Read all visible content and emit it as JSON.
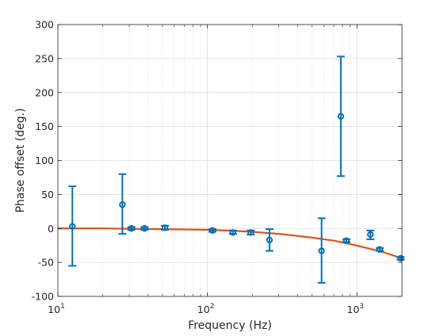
{
  "chart_data": {
    "type": "scatter",
    "xlabel": "Frequency (Hz)",
    "ylabel": "Phase offset (deg.)",
    "xscale": "log",
    "xlim": [
      10,
      2000
    ],
    "ylim": [
      -100,
      300
    ],
    "grid": true,
    "x_ticks": [
      {
        "value": 10,
        "base": "10",
        "exp": "1"
      },
      {
        "value": 100,
        "base": "10",
        "exp": "2"
      },
      {
        "value": 1000,
        "base": "10",
        "exp": "3"
      }
    ],
    "y_ticks": [
      -100,
      -50,
      0,
      50,
      100,
      150,
      200,
      250,
      300
    ],
    "y_tick_labels": [
      "-100",
      "-50",
      "0",
      "50",
      "100",
      "150",
      "200",
      "250",
      "300"
    ],
    "series": [
      {
        "type": "errorbar",
        "color": "#0072BD",
        "marker": "circle",
        "points": [
          {
            "x": 12.5,
            "y": 3,
            "lo": -55,
            "hi": 62
          },
          {
            "x": 27,
            "y": 35,
            "lo": -8,
            "hi": 80
          },
          {
            "x": 31,
            "y": 0,
            "lo": -2,
            "hi": 2
          },
          {
            "x": 38,
            "y": 0,
            "lo": -2,
            "hi": 2
          },
          {
            "x": 52,
            "y": 1,
            "lo": -2,
            "hi": 4
          },
          {
            "x": 108,
            "y": -3,
            "lo": -5,
            "hi": -1
          },
          {
            "x": 148,
            "y": -6,
            "lo": -8,
            "hi": -3
          },
          {
            "x": 195,
            "y": -6,
            "lo": -9,
            "hi": -3
          },
          {
            "x": 260,
            "y": -17,
            "lo": -33,
            "hi": -1
          },
          {
            "x": 580,
            "y": -33,
            "lo": -80,
            "hi": 15
          },
          {
            "x": 780,
            "y": 165,
            "lo": 77,
            "hi": 253
          },
          {
            "x": 850,
            "y": -18,
            "lo": -20,
            "hi": -16
          },
          {
            "x": 1230,
            "y": -9,
            "lo": -16,
            "hi": -3
          },
          {
            "x": 1420,
            "y": -31,
            "lo": -33,
            "hi": -29
          },
          {
            "x": 1960,
            "y": -44,
            "lo": -46,
            "hi": -42
          }
        ]
      },
      {
        "type": "line",
        "color": "#D95319",
        "x": [
          10,
          20,
          30,
          50,
          70,
          100,
          150,
          200,
          300,
          400,
          500,
          700,
          900,
          1200,
          1500,
          2000
        ],
        "y": [
          0,
          0,
          -0.5,
          -1,
          -1.5,
          -2,
          -3.5,
          -5,
          -8,
          -11,
          -13.5,
          -18,
          -23,
          -29.5,
          -35,
          -44
        ]
      }
    ]
  }
}
